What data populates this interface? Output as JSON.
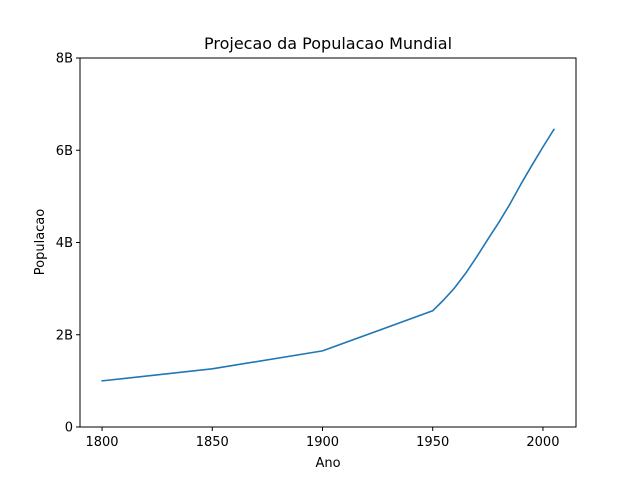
{
  "chart_data": {
    "type": "line",
    "title": "Projecao da Populacao Mundial",
    "xlabel": "Ano",
    "ylabel": "Populacao",
    "xlim": [
      1790,
      2015
    ],
    "ylim": [
      0,
      8000000000
    ],
    "x_ticks": [
      1800,
      1850,
      1900,
      1950,
      2000
    ],
    "y_ticks": [
      {
        "value": 0,
        "label": "0"
      },
      {
        "value": 2000000000,
        "label": "2B"
      },
      {
        "value": 4000000000,
        "label": "4B"
      },
      {
        "value": 6000000000,
        "label": "6B"
      },
      {
        "value": 8000000000,
        "label": "8B"
      }
    ],
    "grid": false,
    "series": [
      {
        "color": "#1f77b4",
        "x": [
          1800,
          1850,
          1900,
          1950,
          1955,
          1960,
          1965,
          1970,
          1975,
          1980,
          1985,
          1990,
          1995,
          2000,
          2005
        ],
        "y": [
          1000000000,
          1262000000,
          1650000000,
          2519000000,
          2756000000,
          3021000000,
          3335000000,
          3692000000,
          4068000000,
          4435000000,
          4831000000,
          5264000000,
          5674000000,
          6071000000,
          6454000000
        ]
      }
    ]
  }
}
